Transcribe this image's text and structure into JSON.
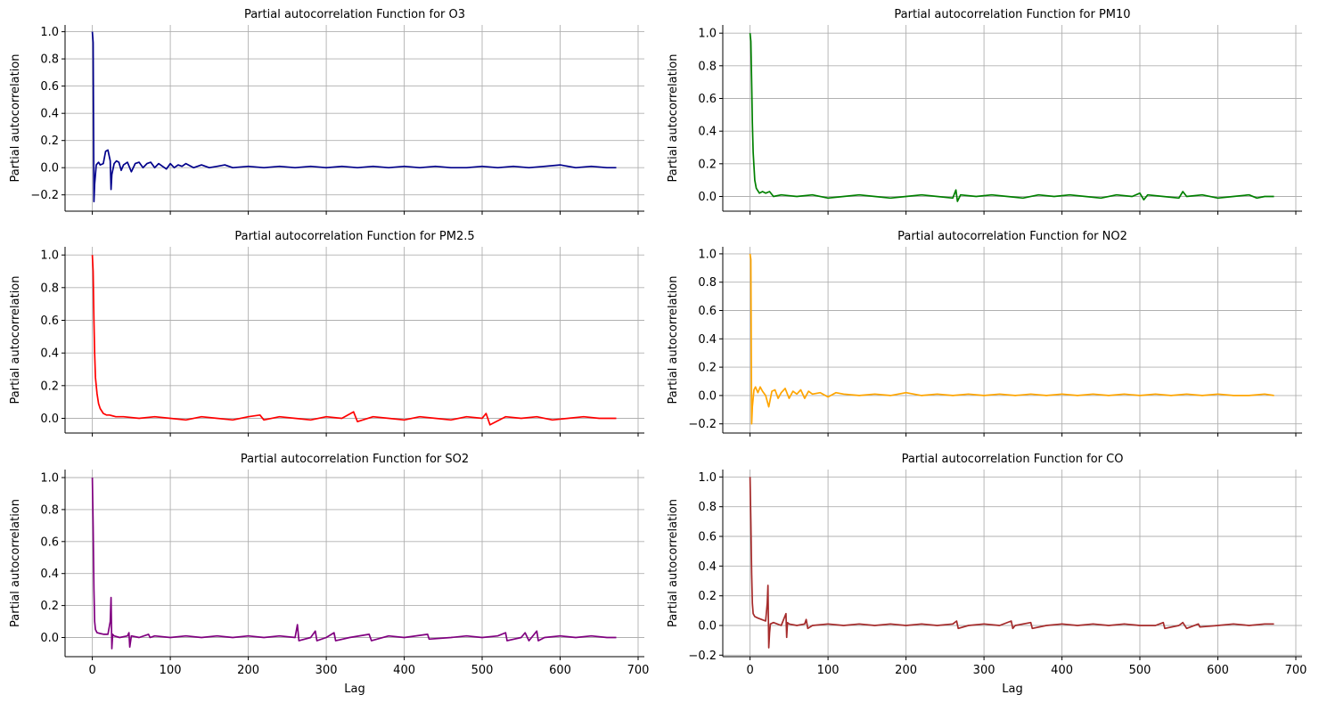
{
  "chart_data": [
    {
      "type": "line",
      "title": "Partial autocorrelation Function for O3",
      "xlabel": "",
      "ylabel": "Partial autocorrelation",
      "xlim": [
        -35,
        708
      ],
      "ylim": [
        -0.32,
        1.05
      ],
      "xticks": [
        0,
        100,
        200,
        300,
        400,
        500,
        600,
        700
      ],
      "xtick_labels_visible": false,
      "yticks": [
        -0.2,
        0.0,
        0.2,
        0.4,
        0.6,
        0.8,
        1.0
      ],
      "ytick_labels": [
        "−0.2",
        "0.0",
        "0.2",
        "0.4",
        "0.6",
        "0.8",
        "1.0"
      ],
      "grid": true,
      "color": "#00008b",
      "series": [
        {
          "x": [
            0,
            1,
            2,
            3,
            5,
            8,
            10,
            14,
            17,
            20,
            23,
            24,
            25,
            28,
            31,
            34,
            37,
            40,
            45,
            50,
            55,
            60,
            65,
            70,
            75,
            80,
            85,
            90,
            95,
            100,
            105,
            110,
            115,
            120,
            130,
            140,
            150,
            160,
            170,
            180,
            200,
            220,
            240,
            260,
            280,
            300,
            320,
            340,
            360,
            380,
            400,
            420,
            440,
            460,
            480,
            500,
            520,
            540,
            560,
            580,
            600,
            620,
            640,
            660,
            672
          ],
          "y": [
            1.0,
            0.92,
            -0.25,
            -0.12,
            0.02,
            0.04,
            0.02,
            0.03,
            0.12,
            0.13,
            0.05,
            -0.16,
            -0.05,
            0.03,
            0.05,
            0.04,
            -0.02,
            0.02,
            0.04,
            -0.03,
            0.03,
            0.04,
            0.0,
            0.03,
            0.04,
            0.0,
            0.03,
            0.01,
            -0.01,
            0.03,
            0.0,
            0.02,
            0.01,
            0.03,
            0.0,
            0.02,
            0.0,
            0.01,
            0.02,
            0.0,
            0.01,
            0.0,
            0.01,
            0.0,
            0.01,
            0.0,
            0.01,
            0.0,
            0.01,
            0.0,
            0.01,
            0.0,
            0.01,
            0.0,
            0.0,
            0.01,
            0.0,
            0.01,
            0.0,
            0.01,
            0.02,
            0.0,
            0.01,
            0.0,
            0.0
          ]
        }
      ]
    },
    {
      "type": "line",
      "title": "Partial autocorrelation Function for PM10",
      "xlabel": "",
      "ylabel": "Partial autocorrelation",
      "xlim": [
        -35,
        708
      ],
      "ylim": [
        -0.09,
        1.05
      ],
      "xticks": [
        0,
        100,
        200,
        300,
        400,
        500,
        600,
        700
      ],
      "xtick_labels_visible": false,
      "yticks": [
        0.0,
        0.2,
        0.4,
        0.6,
        0.8,
        1.0
      ],
      "ytick_labels": [
        "0.0",
        "0.2",
        "0.4",
        "0.6",
        "0.8",
        "1.0"
      ],
      "grid": true,
      "color": "#008000",
      "series": [
        {
          "x": [
            0,
            1,
            2,
            3,
            4,
            6,
            8,
            12,
            16,
            20,
            25,
            30,
            40,
            60,
            80,
            100,
            120,
            140,
            160,
            180,
            200,
            220,
            240,
            260,
            264,
            266,
            270,
            290,
            310,
            330,
            350,
            370,
            390,
            410,
            430,
            450,
            470,
            490,
            500,
            505,
            510,
            530,
            550,
            555,
            560,
            580,
            600,
            620,
            640,
            650,
            660,
            672
          ],
          "y": [
            1.0,
            0.95,
            0.7,
            0.45,
            0.27,
            0.1,
            0.05,
            0.02,
            0.03,
            0.02,
            0.03,
            0.0,
            0.01,
            0.0,
            0.01,
            -0.01,
            0.0,
            0.01,
            0.0,
            -0.01,
            0.0,
            0.01,
            0.0,
            -0.01,
            0.04,
            -0.03,
            0.01,
            0.0,
            0.01,
            0.0,
            -0.01,
            0.01,
            0.0,
            0.01,
            0.0,
            -0.01,
            0.01,
            0.0,
            0.02,
            -0.02,
            0.01,
            0.0,
            -0.01,
            0.03,
            0.0,
            0.01,
            -0.01,
            0.0,
            0.01,
            -0.01,
            0.0,
            0.0
          ]
        }
      ]
    },
    {
      "type": "line",
      "title": "Partial autocorrelation Function for PM2.5",
      "xlabel": "",
      "ylabel": "Partial autocorrelation",
      "xlim": [
        -35,
        708
      ],
      "ylim": [
        -0.09,
        1.05
      ],
      "xticks": [
        0,
        100,
        200,
        300,
        400,
        500,
        600,
        700
      ],
      "xtick_labels_visible": false,
      "yticks": [
        0.0,
        0.2,
        0.4,
        0.6,
        0.8,
        1.0
      ],
      "ytick_labels": [
        "0.0",
        "0.2",
        "0.4",
        "0.6",
        "0.8",
        "1.0"
      ],
      "grid": true,
      "color": "#ff0000",
      "series": [
        {
          "x": [
            0,
            1,
            2,
            3,
            4,
            6,
            8,
            10,
            14,
            18,
            22,
            30,
            40,
            60,
            80,
            100,
            120,
            140,
            160,
            180,
            200,
            215,
            220,
            240,
            260,
            280,
            300,
            320,
            335,
            340,
            360,
            380,
            400,
            420,
            440,
            460,
            480,
            500,
            505,
            510,
            530,
            550,
            570,
            590,
            610,
            630,
            650,
            672
          ],
          "y": [
            1.0,
            0.9,
            0.6,
            0.4,
            0.25,
            0.15,
            0.09,
            0.06,
            0.03,
            0.02,
            0.02,
            0.01,
            0.01,
            0.0,
            0.01,
            0.0,
            -0.01,
            0.01,
            0.0,
            -0.01,
            0.01,
            0.02,
            -0.01,
            0.01,
            0.0,
            -0.01,
            0.01,
            0.0,
            0.04,
            -0.02,
            0.01,
            0.0,
            -0.01,
            0.01,
            0.0,
            -0.01,
            0.01,
            0.0,
            0.03,
            -0.04,
            0.01,
            0.0,
            0.01,
            -0.01,
            0.0,
            0.01,
            0.0,
            0.0
          ]
        }
      ]
    },
    {
      "type": "line",
      "title": "Partial autocorrelation Function for NO2",
      "xlabel": "",
      "ylabel": "Partial autocorrelation",
      "xlim": [
        -35,
        708
      ],
      "ylim": [
        -0.265,
        1.05
      ],
      "xticks": [
        0,
        100,
        200,
        300,
        400,
        500,
        600,
        700
      ],
      "xtick_labels_visible": false,
      "yticks": [
        -0.2,
        0.0,
        0.2,
        0.4,
        0.6,
        0.8,
        1.0
      ],
      "ytick_labels": [
        "−0.2",
        "0.0",
        "0.2",
        "0.4",
        "0.6",
        "0.8",
        "1.0"
      ],
      "grid": true,
      "color": "#ffa500",
      "series": [
        {
          "x": [
            0,
            1,
            2,
            3,
            5,
            7,
            10,
            13,
            16,
            20,
            24,
            28,
            32,
            36,
            40,
            45,
            50,
            55,
            60,
            65,
            70,
            75,
            80,
            90,
            100,
            110,
            120,
            140,
            160,
            180,
            200,
            220,
            240,
            260,
            280,
            300,
            320,
            340,
            360,
            380,
            400,
            420,
            440,
            460,
            480,
            500,
            520,
            540,
            560,
            580,
            600,
            620,
            640,
            660,
            672
          ],
          "y": [
            1.0,
            0.96,
            -0.2,
            -0.08,
            0.04,
            0.06,
            0.02,
            0.06,
            0.03,
            0.0,
            -0.08,
            0.03,
            0.04,
            -0.02,
            0.02,
            0.05,
            -0.02,
            0.03,
            0.01,
            0.04,
            -0.02,
            0.03,
            0.01,
            0.02,
            -0.01,
            0.02,
            0.01,
            0.0,
            0.01,
            0.0,
            0.02,
            0.0,
            0.01,
            0.0,
            0.01,
            0.0,
            0.01,
            0.0,
            0.01,
            0.0,
            0.01,
            0.0,
            0.01,
            0.0,
            0.01,
            0.0,
            0.01,
            0.0,
            0.01,
            0.0,
            0.01,
            0.0,
            0.0,
            0.01,
            0.0
          ]
        }
      ]
    },
    {
      "type": "line",
      "title": "Partial autocorrelation Function for SO2",
      "xlabel": "Lag",
      "ylabel": "Partial autocorrelation",
      "xlim": [
        -35,
        708
      ],
      "ylim": [
        -0.12,
        1.05
      ],
      "xticks": [
        0,
        100,
        200,
        300,
        400,
        500,
        600,
        700
      ],
      "xtick_labels": [
        "0",
        "100",
        "200",
        "300",
        "400",
        "500",
        "600",
        "700"
      ],
      "xtick_labels_visible": true,
      "yticks": [
        0.0,
        0.2,
        0.4,
        0.6,
        0.8,
        1.0
      ],
      "ytick_labels": [
        "0.0",
        "0.2",
        "0.4",
        "0.6",
        "0.8",
        "1.0"
      ],
      "grid": true,
      "color": "#800080",
      "series": [
        {
          "x": [
            0,
            1,
            2,
            3,
            4,
            6,
            10,
            15,
            20,
            23,
            24,
            25,
            26,
            28,
            35,
            45,
            47,
            48,
            50,
            60,
            72,
            74,
            80,
            100,
            120,
            140,
            160,
            180,
            200,
            220,
            240,
            260,
            263,
            265,
            280,
            286,
            288,
            300,
            310,
            312,
            330,
            355,
            358,
            380,
            400,
            430,
            432,
            460,
            480,
            500,
            520,
            530,
            532,
            550,
            555,
            560,
            570,
            572,
            580,
            600,
            620,
            640,
            660,
            672
          ],
          "y": [
            1.0,
            0.7,
            0.3,
            0.1,
            0.05,
            0.03,
            0.025,
            0.02,
            0.02,
            0.1,
            0.25,
            -0.07,
            0.02,
            0.01,
            0.0,
            0.01,
            0.03,
            -0.06,
            0.01,
            0.0,
            0.02,
            0.0,
            0.01,
            0.0,
            0.01,
            0.0,
            0.01,
            0.0,
            0.01,
            0.0,
            0.01,
            0.0,
            0.08,
            -0.02,
            0.0,
            0.04,
            -0.02,
            0.0,
            0.03,
            -0.02,
            0.0,
            0.02,
            -0.02,
            0.01,
            0.0,
            0.02,
            -0.01,
            0.0,
            0.01,
            0.0,
            0.01,
            0.03,
            -0.02,
            0.0,
            0.03,
            -0.02,
            0.04,
            -0.02,
            0.0,
            0.01,
            0.0,
            0.01,
            0.0,
            0.0
          ]
        }
      ]
    },
    {
      "type": "line",
      "title": "Partial autocorrelation Function for CO",
      "xlabel": "Lag",
      "ylabel": "Partial autocorrelation",
      "xlim": [
        -35,
        708
      ],
      "ylim": [
        -0.21,
        1.05
      ],
      "xticks": [
        0,
        100,
        200,
        300,
        400,
        500,
        600,
        700
      ],
      "xtick_labels": [
        "0",
        "100",
        "200",
        "300",
        "400",
        "500",
        "600",
        "700"
      ],
      "xtick_labels_visible": true,
      "yticks": [
        -0.2,
        0.0,
        0.2,
        0.4,
        0.6,
        0.8,
        1.0
      ],
      "ytick_labels": [
        "−0.2",
        "0.0",
        "0.2",
        "0.4",
        "0.6",
        "0.8",
        "1.0"
      ],
      "grid": true,
      "color": "#a52a2a",
      "series": [
        {
          "x": [
            0,
            1,
            2,
            3,
            4,
            6,
            10,
            15,
            20,
            22,
            23,
            24,
            25,
            26,
            30,
            40,
            46,
            47,
            48,
            50,
            60,
            70,
            72,
            74,
            80,
            100,
            120,
            140,
            160,
            180,
            200,
            220,
            240,
            260,
            265,
            267,
            280,
            300,
            320,
            335,
            337,
            340,
            360,
            362,
            380,
            400,
            420,
            440,
            460,
            480,
            500,
            520,
            530,
            532,
            550,
            555,
            560,
            575,
            577,
            600,
            620,
            640,
            660,
            672
          ],
          "y": [
            1.0,
            0.7,
            0.35,
            0.15,
            0.08,
            0.06,
            0.05,
            0.04,
            0.03,
            0.15,
            0.27,
            -0.15,
            -0.05,
            0.01,
            0.02,
            0.0,
            0.08,
            -0.08,
            0.02,
            0.01,
            0.0,
            0.01,
            0.04,
            -0.02,
            0.0,
            0.01,
            0.0,
            0.01,
            0.0,
            0.01,
            0.0,
            0.01,
            0.0,
            0.01,
            0.03,
            -0.02,
            0.0,
            0.01,
            0.0,
            0.03,
            -0.02,
            0.0,
            0.02,
            -0.02,
            0.0,
            0.01,
            0.0,
            0.01,
            0.0,
            0.01,
            0.0,
            0.0,
            0.02,
            -0.02,
            0.0,
            0.02,
            -0.02,
            0.01,
            -0.01,
            0.0,
            0.01,
            0.0,
            0.01,
            0.01
          ]
        }
      ]
    }
  ]
}
